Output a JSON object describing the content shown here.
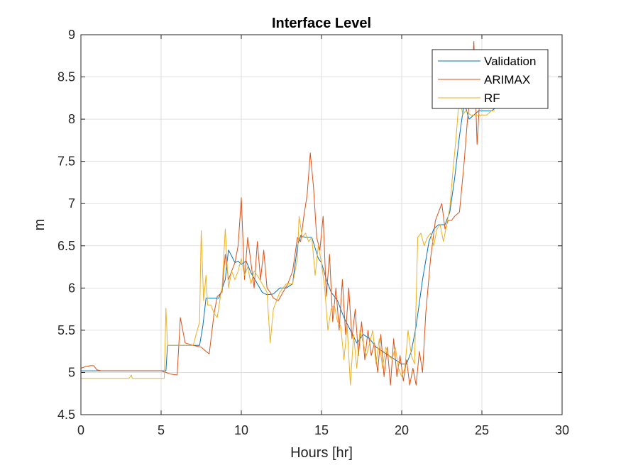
{
  "chart_data": {
    "type": "line",
    "title": "Interface Level",
    "xlabel": "Hours [hr]",
    "ylabel": "m",
    "xlim": [
      0,
      30
    ],
    "ylim": [
      4.5,
      9
    ],
    "xticks": [
      0,
      5,
      10,
      15,
      20,
      25,
      30
    ],
    "yticks": [
      4.5,
      5,
      5.5,
      6,
      6.5,
      7,
      7.5,
      8,
      8.5,
      9
    ],
    "xtick_labels": [
      "0",
      "5",
      "10",
      "15",
      "20",
      "25",
      "30"
    ],
    "ytick_labels": [
      "4.5",
      "5",
      "5.5",
      "6",
      "6.5",
      "7",
      "7.5",
      "8",
      "8.5",
      "9"
    ],
    "grid": true,
    "legend_position": "top-right",
    "series": [
      {
        "name": "Validation",
        "color": "#0072BD",
        "x": [
          0,
          1,
          2,
          3,
          4,
          5,
          5.3,
          5.4,
          6,
          7,
          7.4,
          7.6,
          7.8,
          8.2,
          8.6,
          9.0,
          9.2,
          9.4,
          9.6,
          9.8,
          10.0,
          10.3,
          10.6,
          11.0,
          11.3,
          11.6,
          12.0,
          12.4,
          12.8,
          13.2,
          13.5,
          13.7,
          14.0,
          14.4,
          14.8,
          15.0,
          15.3,
          15.6,
          16.0,
          16.4,
          16.8,
          17.2,
          17.6,
          18.0,
          18.4,
          18.8,
          19.2,
          19.6,
          20.0,
          20.3,
          20.6,
          20.9,
          21.3,
          21.7,
          22.0,
          22.3,
          22.7,
          23.0,
          23.3,
          23.6,
          23.9,
          24.2,
          24.5,
          24.8,
          25.2,
          25.6,
          26.0
        ],
        "y": [
          5.02,
          5.02,
          5.02,
          5.02,
          5.02,
          5.02,
          5.02,
          5.32,
          5.32,
          5.32,
          5.32,
          5.55,
          5.88,
          5.88,
          5.88,
          6.1,
          6.45,
          6.38,
          6.3,
          6.32,
          6.28,
          6.32,
          6.18,
          6.05,
          5.95,
          5.92,
          5.93,
          6.0,
          6.0,
          6.05,
          6.5,
          6.62,
          6.6,
          6.6,
          6.35,
          6.3,
          6.1,
          5.95,
          5.85,
          5.65,
          5.5,
          5.35,
          5.45,
          5.4,
          5.3,
          5.25,
          5.2,
          5.15,
          5.1,
          5.1,
          5.25,
          5.55,
          6.1,
          6.55,
          6.7,
          6.75,
          6.75,
          6.9,
          7.3,
          7.8,
          8.2,
          8.0,
          8.05,
          8.1,
          8.1,
          8.1,
          8.15
        ]
      },
      {
        "name": "ARIMAX",
        "color": "#D95319",
        "x": [
          0,
          0.3,
          0.6,
          0.8,
          1.0,
          1.3,
          2,
          3,
          4,
          5,
          5.3,
          5.6,
          6.0,
          6.2,
          6.5,
          7,
          7.5,
          7.8,
          8.0,
          8.3,
          8.5,
          8.8,
          9.0,
          9.2,
          9.4,
          9.6,
          9.8,
          10.0,
          10.2,
          10.4,
          10.6,
          10.8,
          11.0,
          11.2,
          11.4,
          11.6,
          11.8,
          12.0,
          12.3,
          12.6,
          12.9,
          13.2,
          13.5,
          13.7,
          13.9,
          14.1,
          14.3,
          14.5,
          14.7,
          14.9,
          15.1,
          15.3,
          15.5,
          15.7,
          15.9,
          16.1,
          16.3,
          16.5,
          16.7,
          16.9,
          17.1,
          17.3,
          17.5,
          17.7,
          17.9,
          18.1,
          18.3,
          18.5,
          18.7,
          18.9,
          19.1,
          19.3,
          19.5,
          19.7,
          19.9,
          20.1,
          20.3,
          20.5,
          20.7,
          20.9,
          21.1,
          21.3,
          21.5,
          21.8,
          22.1,
          22.3,
          22.5,
          22.7,
          22.9,
          23.1,
          23.3,
          23.6,
          23.9,
          24.1,
          24.3,
          24.5,
          24.7,
          24.9,
          25.2,
          25.5,
          25.8
        ],
        "y": [
          5.05,
          5.07,
          5.08,
          5.08,
          5.03,
          5.02,
          5.02,
          5.02,
          5.02,
          5.02,
          5.0,
          4.98,
          4.97,
          5.65,
          5.35,
          5.32,
          5.3,
          5.25,
          5.22,
          5.7,
          5.9,
          5.95,
          6.4,
          6.1,
          6.2,
          6.3,
          6.5,
          7.07,
          6.1,
          6.6,
          6.3,
          6.0,
          6.55,
          6.1,
          6.45,
          6.0,
          5.95,
          5.88,
          5.85,
          5.95,
          6.05,
          6.2,
          6.6,
          6.55,
          6.85,
          7.1,
          7.6,
          7.2,
          6.6,
          6.45,
          6.85,
          5.9,
          6.4,
          5.6,
          6.0,
          5.5,
          6.1,
          5.45,
          6.0,
          5.4,
          5.75,
          5.2,
          5.6,
          5.15,
          5.5,
          5.2,
          5.35,
          5.0,
          5.45,
          4.95,
          5.3,
          4.85,
          5.4,
          4.95,
          5.2,
          4.9,
          5.15,
          4.85,
          5.05,
          4.85,
          5.25,
          5.0,
          5.7,
          6.35,
          6.8,
          6.9,
          7.0,
          6.7,
          6.8,
          6.8,
          6.85,
          6.9,
          7.5,
          8.0,
          8.3,
          8.92,
          7.7,
          8.35,
          8.2,
          8.6,
          8.5
        ]
      },
      {
        "name": "RF",
        "color": "#EDB120",
        "x": [
          0,
          1,
          2,
          3,
          3.15,
          3.2,
          4,
          5,
          5.2,
          5.3,
          5.4,
          5.6,
          6,
          7,
          7.4,
          7.5,
          7.65,
          7.8,
          7.9,
          8.1,
          8.3,
          8.5,
          8.7,
          8.8,
          9.0,
          9.2,
          9.4,
          9.6,
          9.8,
          10.0,
          10.2,
          10.4,
          10.6,
          10.8,
          11.0,
          11.3,
          11.6,
          11.8,
          12.0,
          12.4,
          12.8,
          13.2,
          13.5,
          13.6,
          13.8,
          14.0,
          14.2,
          14.4,
          14.6,
          14.8,
          15.0,
          15.2,
          15.4,
          15.6,
          15.8,
          16.0,
          16.2,
          16.4,
          16.6,
          16.8,
          17.0,
          17.2,
          17.4,
          17.6,
          17.8,
          18.0,
          18.2,
          18.4,
          18.6,
          18.8,
          19.0,
          19.2,
          19.4,
          19.6,
          19.8,
          20.0,
          20.2,
          20.4,
          20.6,
          20.8,
          21.0,
          21.2,
          21.4,
          21.6,
          21.8,
          22.0,
          22.2,
          22.4,
          22.6,
          22.8,
          23.0,
          23.2,
          23.4,
          23.6,
          23.8,
          24.0,
          24.3,
          24.6,
          24.8,
          25.0,
          25.3,
          25.6,
          25.8
        ],
        "y": [
          4.93,
          4.93,
          4.93,
          4.93,
          4.97,
          4.93,
          4.93,
          4.93,
          4.93,
          5.76,
          5.32,
          5.32,
          5.32,
          5.32,
          5.6,
          6.68,
          5.85,
          6.15,
          5.8,
          5.8,
          5.7,
          5.65,
          5.9,
          6.0,
          6.7,
          6.0,
          6.2,
          6.1,
          6.2,
          6.35,
          6.15,
          6.25,
          6.05,
          6.2,
          6.15,
          6.05,
          5.95,
          5.35,
          5.75,
          5.95,
          6.05,
          6.05,
          6.35,
          6.85,
          6.6,
          6.65,
          6.55,
          6.6,
          6.15,
          6.5,
          6.3,
          6.0,
          5.5,
          5.75,
          5.8,
          5.6,
          5.55,
          5.15,
          5.55,
          4.85,
          5.45,
          5.05,
          5.5,
          5.35,
          5.2,
          5.35,
          5.5,
          5.1,
          5.4,
          5.05,
          5.3,
          5.2,
          5.15,
          5.3,
          5.05,
          4.95,
          5.05,
          5.5,
          5.2,
          5.1,
          6.6,
          6.65,
          6.5,
          6.6,
          6.65,
          6.5,
          6.7,
          6.75,
          6.55,
          6.75,
          6.95,
          7.4,
          7.8,
          8.3,
          8.05,
          8.1,
          8.05,
          8.05,
          8.05,
          8.05,
          8.05,
          8.1,
          8.1
        ]
      }
    ]
  }
}
